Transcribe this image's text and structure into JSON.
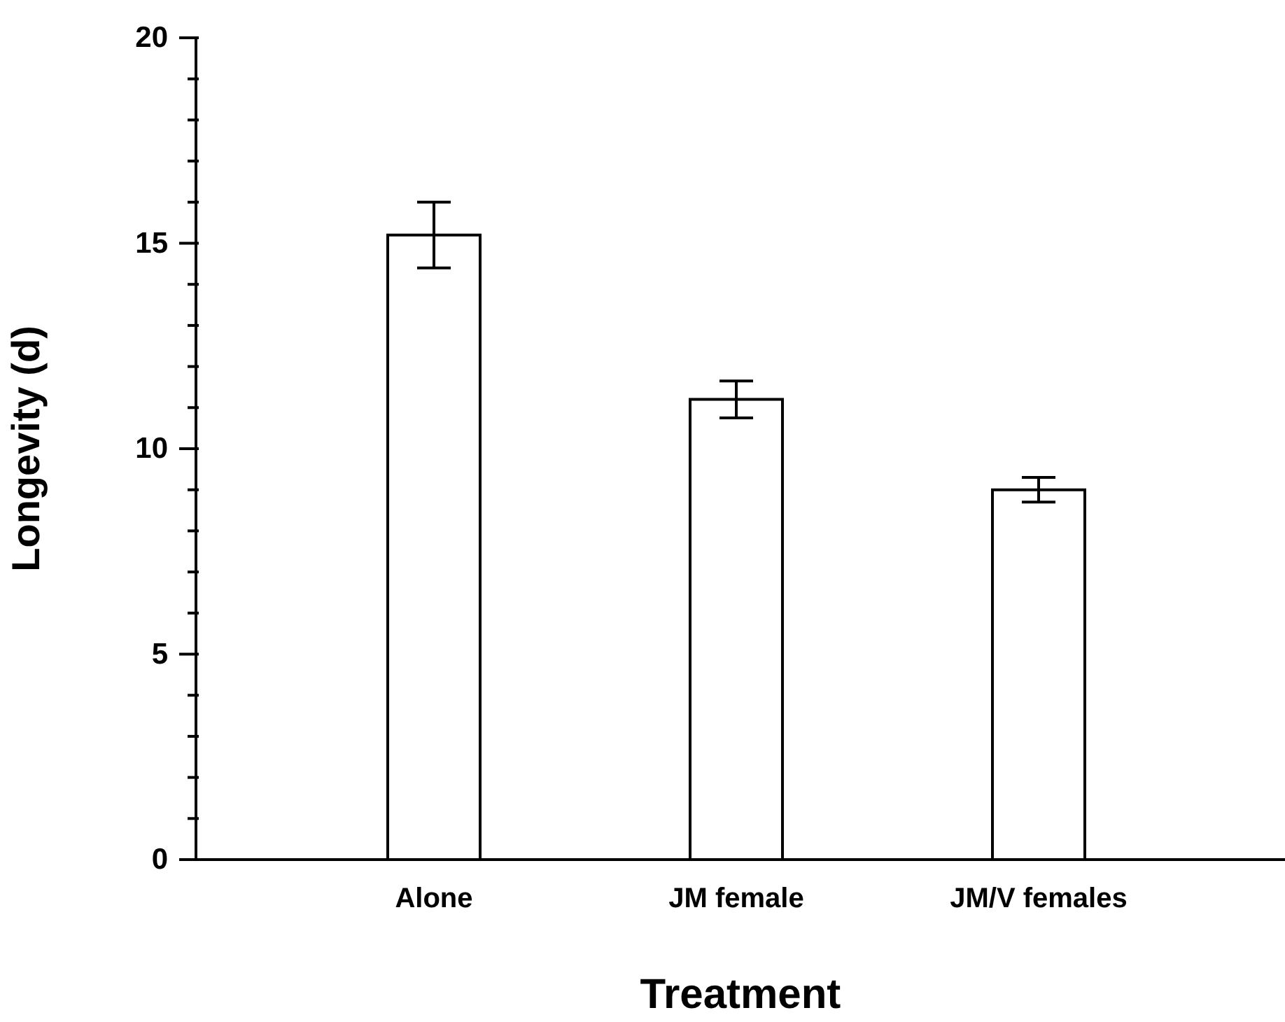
{
  "chart_data": {
    "type": "bar",
    "xlabel": "Treatment",
    "ylabel": "Longevity (d)",
    "categories": [
      "Alone",
      "JM female",
      "JM/V females"
    ],
    "values": [
      15.2,
      11.2,
      9.0
    ],
    "errors": [
      0.8,
      0.45,
      0.3
    ],
    "color": "#ffffff",
    "ylim": [
      0,
      20
    ],
    "yticks": [
      0,
      {
        "value": 1,
        "label": null
      },
      {
        "value": 2,
        "label": null
      },
      {
        "value": 3,
        "label": null
      },
      {
        "value": 4,
        "label": null
      },
      5,
      {
        "value": 6,
        "label": null
      },
      {
        "value": 7,
        "label": null
      },
      {
        "value": 8,
        "label": null
      },
      {
        "value": 9,
        "label": null
      },
      10,
      {
        "value": 11,
        "label": null
      },
      {
        "value": 12,
        "label": null
      },
      {
        "value": 13,
        "label": null
      },
      {
        "value": 14,
        "label": null
      },
      15,
      {
        "value": 16,
        "label": null
      },
      {
        "value": 17,
        "label": null
      },
      {
        "value": 18,
        "label": null
      },
      {
        "value": 19,
        "label": null
      },
      20
    ],
    "grid": false,
    "legend": false
  }
}
